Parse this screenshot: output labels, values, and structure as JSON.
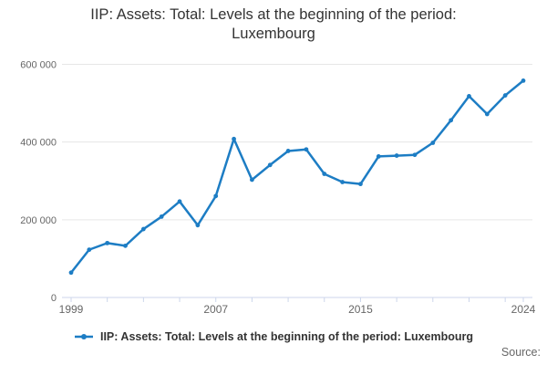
{
  "title": {
    "line1": "IIP: Assets: Total: Levels at the beginning of the period:",
    "line2": "Luxembourg"
  },
  "legend": {
    "label": "IIP: Assets: Total: Levels at the beginning of the period: Luxembourg"
  },
  "footer": {
    "source_label": "Source:"
  },
  "colors": {
    "line": "#1d7dc4",
    "axis": "#ccd6eb",
    "grid": "#e6e6e6",
    "tick_label": "#666666",
    "title": "#333333",
    "legend_text": "#333333",
    "source_text": "#666666"
  },
  "chart_data": {
    "type": "line",
    "title": "IIP: Assets: Total: Levels at the beginning of the period: Luxembourg",
    "xlabel": "",
    "ylabel": "",
    "x": [
      1999,
      2000,
      2001,
      2002,
      2003,
      2004,
      2005,
      2006,
      2007,
      2008,
      2009,
      2010,
      2011,
      2012,
      2013,
      2014,
      2015,
      2016,
      2017,
      2018,
      2019,
      2020,
      2021,
      2022,
      2023,
      2024
    ],
    "series": [
      {
        "name": "IIP: Assets: Total: Levels at the beginning of the period: Luxembourg",
        "color": "#1d7dc4",
        "values": [
          64000,
          123000,
          140000,
          133000,
          176000,
          208000,
          247000,
          186000,
          261000,
          408000,
          303000,
          341000,
          377000,
          381000,
          318000,
          297000,
          292000,
          363000,
          365000,
          367000,
          398000,
          456000,
          518000,
          472000,
          520000,
          558000
        ]
      }
    ],
    "ylim": [
      0,
      600000
    ],
    "yticks": [
      0,
      200000,
      400000,
      600000
    ],
    "ytick_labels": [
      "0",
      "200 000",
      "400 000",
      "600 000"
    ],
    "xticks_labeled": [
      1999,
      2007,
      2015,
      2024
    ],
    "xtick_minor_step": 2,
    "grid": "horizontal",
    "legend_position": "bottom"
  }
}
